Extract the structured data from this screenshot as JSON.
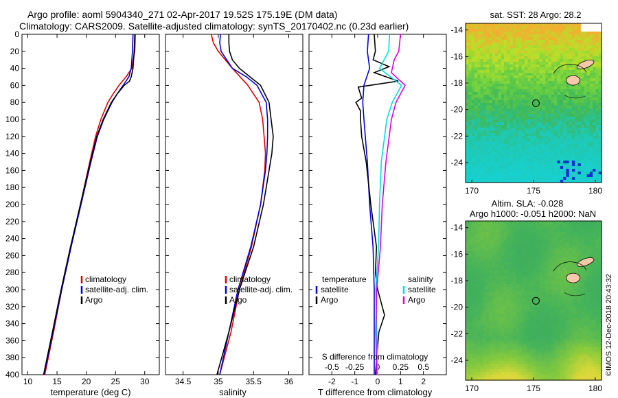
{
  "header": {
    "line1": "Argo profile: aoml 5904340_271 02-Apr-2017 19.52S 175.19E (DM data)",
    "line2": "Climatology: CARS2009. Satellite-adjusted climatology: synTS_20170402.nc (0.23d earlier)"
  },
  "chart_data": [
    {
      "type": "line",
      "title": "",
      "xlabel": "temperature (deg C)",
      "ylabel": "",
      "xlim": [
        9,
        32.5
      ],
      "ylim": [
        400,
        0
      ],
      "xticks": [
        10,
        15,
        20,
        25,
        30
      ],
      "yticks": [
        0,
        20,
        40,
        60,
        80,
        100,
        120,
        140,
        160,
        180,
        200,
        220,
        240,
        260,
        280,
        300,
        320,
        340,
        360,
        380,
        400
      ],
      "legend": [
        "climatology",
        "satellite-adj. clim.",
        "Argo"
      ],
      "series": [
        {
          "name": "climatology",
          "color": "#dd0000",
          "depth": [
            0,
            20,
            40,
            50,
            60,
            70,
            80,
            100,
            120,
            150,
            200,
            250,
            300,
            350,
            400
          ],
          "values": [
            28.4,
            28.3,
            27.8,
            26.8,
            25.6,
            24.6,
            23.7,
            22.5,
            21.6,
            20.6,
            19.0,
            17.4,
            15.8,
            14.4,
            12.9
          ]
        },
        {
          "name": "satellite-adj. clim.",
          "color": "#0000dd",
          "depth": [
            0,
            20,
            40,
            50,
            60,
            70,
            80,
            100,
            120,
            150,
            200,
            250,
            300,
            350,
            400
          ],
          "values": [
            28.0,
            27.9,
            27.7,
            27.3,
            26.3,
            25.3,
            24.4,
            23.0,
            21.9,
            20.8,
            19.1,
            17.4,
            15.8,
            14.3,
            12.8
          ]
        },
        {
          "name": "Argo",
          "color": "#000000",
          "depth": [
            0,
            20,
            40,
            50,
            55,
            60,
            70,
            80,
            100,
            120,
            150,
            200,
            250,
            300,
            350,
            400
          ],
          "values": [
            28.3,
            28.2,
            28.0,
            27.7,
            27.4,
            26.5,
            25.3,
            24.3,
            22.9,
            21.8,
            20.7,
            19.0,
            17.3,
            15.7,
            14.2,
            12.7
          ]
        }
      ]
    },
    {
      "type": "line",
      "title": "",
      "xlabel": "salinity",
      "ylabel": "",
      "xlim": [
        34.25,
        36.2
      ],
      "ylim": [
        400,
        0
      ],
      "xticks": [
        34.5,
        35,
        35.5,
        36
      ],
      "legend": [
        "climatology",
        "satellite-adj. clim.",
        "Argo"
      ],
      "series": [
        {
          "name": "climatology",
          "color": "#dd0000",
          "depth": [
            0,
            10,
            20,
            40,
            60,
            80,
            100,
            120,
            140,
            160,
            200,
            250,
            300,
            350,
            400
          ],
          "values": [
            34.9,
            34.93,
            35.0,
            35.2,
            35.42,
            35.58,
            35.63,
            35.65,
            35.67,
            35.66,
            35.6,
            35.47,
            35.3,
            35.18,
            35.02
          ]
        },
        {
          "name": "satellite-adj. clim.",
          "color": "#0000dd",
          "depth": [
            0,
            10,
            20,
            40,
            50,
            60,
            80,
            100,
            120,
            140,
            160,
            200,
            250,
            300,
            350,
            400
          ],
          "values": [
            35.03,
            35.02,
            35.04,
            35.2,
            35.4,
            35.55,
            35.68,
            35.7,
            35.7,
            35.69,
            35.67,
            35.6,
            35.46,
            35.28,
            35.15,
            35.02
          ]
        },
        {
          "name": "Argo",
          "color": "#000000",
          "depth": [
            0,
            10,
            20,
            30,
            40,
            50,
            60,
            80,
            100,
            120,
            140,
            160,
            180,
            200,
            250,
            300,
            350,
            400
          ],
          "values": [
            35.15,
            35.15,
            35.16,
            35.2,
            35.3,
            35.45,
            35.6,
            35.72,
            35.75,
            35.78,
            35.76,
            35.72,
            35.68,
            35.64,
            35.5,
            35.3,
            35.15,
            34.98
          ]
        }
      ]
    },
    {
      "type": "line",
      "title": "",
      "xlabel": "T difference from climatology",
      "ylabel": "",
      "xlim": [
        -3,
        3
      ],
      "ylim": [
        400,
        0
      ],
      "xticks": [
        -2,
        -1,
        0,
        1,
        2
      ],
      "secondary_xlabel": "S difference from climatology",
      "secondary_xlim": [
        -0.75,
        0.75
      ],
      "secondary_xticks": [
        "-0.5",
        "-0.25",
        "0",
        "0.25",
        "0.5"
      ],
      "legend_temperature_title": "temperature",
      "legend_salinity_title": "salinity",
      "legend_temperature": [
        "satellite",
        "Argo"
      ],
      "legend_salinity": [
        "satellite",
        "Argo"
      ],
      "series": [
        {
          "name": "temperature satellite",
          "color": "#0000dd",
          "depth": [
            0,
            20,
            40,
            60,
            80,
            100,
            150,
            200,
            250,
            300,
            350,
            400
          ],
          "values": [
            -0.4,
            -0.45,
            -0.35,
            -0.6,
            -0.65,
            -0.6,
            -0.45,
            -0.35,
            -0.2,
            -0.15,
            -0.15,
            -0.15
          ]
        },
        {
          "name": "temperature Argo",
          "color": "#000000",
          "depth": [
            0,
            20,
            30,
            38,
            45,
            55,
            62,
            75,
            80,
            90,
            100,
            120,
            150,
            200,
            250,
            280,
            300,
            330,
            350,
            400
          ],
          "values": [
            -0.15,
            -0.1,
            -0.2,
            0.5,
            -0.15,
            0.9,
            -0.85,
            -0.7,
            -0.95,
            -0.75,
            -0.75,
            -0.7,
            -0.5,
            -0.3,
            -0.05,
            -0.1,
            0.0,
            0.3,
            0.05,
            -0.1
          ]
        },
        {
          "name": "salinity satellite",
          "color": "#00dddd",
          "depth": [
            0,
            20,
            40,
            60,
            80,
            100,
            150,
            200,
            250,
            300,
            350,
            400
          ],
          "values": [
            0.13,
            0.12,
            0.02,
            0.26,
            0.16,
            0.1,
            0.04,
            0.02,
            0.01,
            -0.02,
            -0.01,
            0.0
          ]
        },
        {
          "name": "salinity Argo",
          "color": "#dd00dd",
          "depth": [
            0,
            20,
            30,
            45,
            60,
            80,
            100,
            150,
            200,
            250,
            300,
            350,
            400
          ],
          "values": [
            0.25,
            0.23,
            0.18,
            0.15,
            0.3,
            0.2,
            0.15,
            0.09,
            0.05,
            0.03,
            -0.01,
            -0.02,
            -0.01
          ]
        }
      ]
    },
    {
      "type": "heatmap",
      "title": "sat. SST: 28 Argo: 28.2",
      "xlim": [
        169.5,
        180.5
      ],
      "ylim": [
        -25.5,
        -13.5
      ],
      "xticks": [
        170,
        175,
        180
      ],
      "yticks": [
        -14,
        -16,
        -18,
        -20,
        -22,
        -24
      ],
      "marker_lon": 175.19,
      "marker_lat": -19.52
    },
    {
      "type": "heatmap",
      "title": "Altim. SLA: -0.028",
      "subtitle": "Argo h1000: -0.051 h2000: NaN",
      "xlim": [
        169.5,
        180.5
      ],
      "ylim": [
        -25.5,
        -13.5
      ],
      "xticks": [
        170,
        175,
        180
      ],
      "yticks": [
        -14,
        -16,
        -18,
        -20,
        -22,
        -24
      ],
      "marker_lon": 175.19,
      "marker_lat": -19.52
    }
  ],
  "credit": "©IMOS 12-Dec-2018 20:43:32",
  "colors": {
    "climatology": "#dd0000",
    "satellite": "#0000dd",
    "argo": "#000000",
    "s_satellite": "#00dddd",
    "s_argo": "#dd00dd"
  }
}
